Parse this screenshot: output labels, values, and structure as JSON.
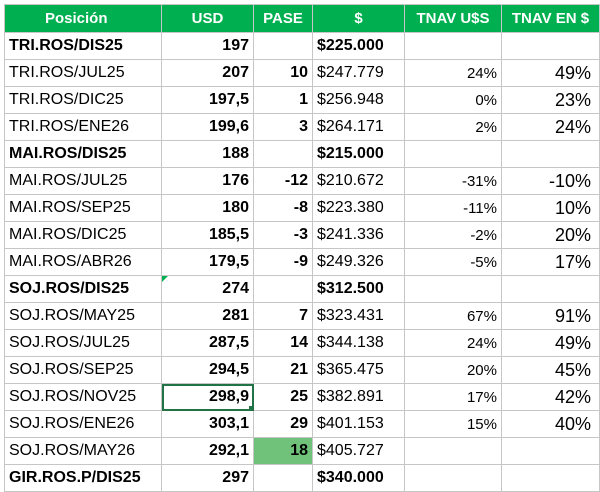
{
  "headers": {
    "posicion": "Posición",
    "usd": "USD",
    "pase": "PASE",
    "price": "$",
    "tnav_usd": "TNAV U$S",
    "tnav_ars": "TNAV EN $"
  },
  "rows": [
    {
      "pos": "TRI.ROS/DIS25",
      "usd": "197",
      "pase": "",
      "price": "$225.000",
      "tusd": "",
      "tars": ""
    },
    {
      "pos": "TRI.ROS/JUL25",
      "usd": "207",
      "pase": "10",
      "price": "$247.779",
      "tusd": "24%",
      "tars": "49%"
    },
    {
      "pos": "TRI.ROS/DIC25",
      "usd": "197,5",
      "pase": "1",
      "price": "$256.948",
      "tusd": "0%",
      "tars": "23%"
    },
    {
      "pos": "TRI.ROS/ENE26",
      "usd": "199,6",
      "pase": "3",
      "price": "$264.171",
      "tusd": "2%",
      "tars": "24%"
    },
    {
      "pos": "MAI.ROS/DIS25",
      "usd": "188",
      "pase": "",
      "price": "$215.000",
      "tusd": "",
      "tars": ""
    },
    {
      "pos": "MAI.ROS/JUL25",
      "usd": "176",
      "pase": "-12",
      "price": "$210.672",
      "tusd": "-31%",
      "tars": "-10%"
    },
    {
      "pos": "MAI.ROS/SEP25",
      "usd": "180",
      "pase": "-8",
      "price": "$223.380",
      "tusd": "-11%",
      "tars": "10%"
    },
    {
      "pos": "MAI.ROS/DIC25",
      "usd": "185,5",
      "pase": "-3",
      "price": "$241.336",
      "tusd": "-2%",
      "tars": "20%"
    },
    {
      "pos": "MAI.ROS/ABR26",
      "usd": "179,5",
      "pase": "-9",
      "price": "$249.326",
      "tusd": "-5%",
      "tars": "17%"
    },
    {
      "pos": "SOJ.ROS/DIS25",
      "usd": "274",
      "pase": "",
      "price": "$312.500",
      "tusd": "",
      "tars": ""
    },
    {
      "pos": "SOJ.ROS/MAY25",
      "usd": "281",
      "pase": "7",
      "price": "$323.431",
      "tusd": "67%",
      "tars": "91%"
    },
    {
      "pos": "SOJ.ROS/JUL25",
      "usd": "287,5",
      "pase": "14",
      "price": "$344.138",
      "tusd": "24%",
      "tars": "49%"
    },
    {
      "pos": "SOJ.ROS/SEP25",
      "usd": "294,5",
      "pase": "21",
      "price": "$365.475",
      "tusd": "20%",
      "tars": "45%"
    },
    {
      "pos": "SOJ.ROS/NOV25",
      "usd": "298,9",
      "pase": "25",
      "price": "$382.891",
      "tusd": "17%",
      "tars": "42%"
    },
    {
      "pos": "SOJ.ROS/ENE26",
      "usd": "303,1",
      "pase": "29",
      "price": "$401.153",
      "tusd": "15%",
      "tars": "40%"
    },
    {
      "pos": "SOJ.ROS/MAY26",
      "usd": "292,1",
      "pase": "18",
      "price": "$405.727",
      "tusd": "",
      "tars": ""
    },
    {
      "pos": "GIR.ROS.P/DIS25",
      "usd": "297",
      "pase": "",
      "price": "$340.000",
      "tusd": "",
      "tars": ""
    }
  ],
  "colors": {
    "header_bg": "#00b050",
    "highlight_cell": "#70c27a",
    "selection": "#217346"
  }
}
